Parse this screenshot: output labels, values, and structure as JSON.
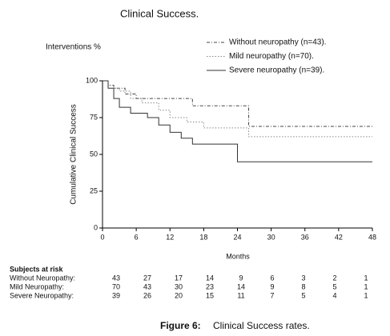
{
  "chart_data": {
    "type": "step",
    "title": "Clinical Success.",
    "subtitle": "Interventions %",
    "ylabel": "Cumulative Clinical Success",
    "xlabel": "Months",
    "xlim": [
      0,
      48
    ],
    "xticks": [
      0,
      6,
      12,
      18,
      24,
      30,
      36,
      42,
      48
    ],
    "ylim": [
      0,
      100
    ],
    "yticks": [
      0,
      25,
      50,
      75,
      100
    ],
    "series": [
      {
        "name": "Without neuropathy (n=43).",
        "color": "#444",
        "line_style": "dashdot",
        "x": [
          0,
          1,
          2,
          4,
          6,
          16,
          26,
          48
        ],
        "values": [
          100,
          97,
          95,
          91,
          88,
          83,
          69,
          69
        ]
      },
      {
        "name": "Mild neuropathy (n=70).",
        "color": "#888",
        "line_style": "dotted",
        "x": [
          0,
          1,
          2,
          3,
          5,
          7,
          10,
          12,
          15,
          18,
          26,
          48
        ],
        "values": [
          100,
          97,
          95,
          93,
          88,
          85,
          80,
          75,
          72,
          68,
          62,
          62
        ]
      },
      {
        "name": "Severe neuropathy (n=39).",
        "color": "#333",
        "line_style": "solid",
        "x": [
          0,
          1,
          2,
          3,
          5,
          8,
          10,
          12,
          14,
          16,
          24,
          48
        ],
        "values": [
          100,
          95,
          88,
          82,
          78,
          75,
          70,
          65,
          61,
          57,
          45,
          45
        ]
      }
    ],
    "risk_table": {
      "title": "Subjects at risk",
      "rows": [
        {
          "label": "Without Neuropathy:",
          "values": [
            43,
            27,
            17,
            14,
            9,
            6,
            3,
            2,
            1
          ]
        },
        {
          "label": "Mild Neuropathy:",
          "values": [
            70,
            43,
            30,
            23,
            14,
            9,
            8,
            5,
            1
          ]
        },
        {
          "label": "Severe Neuropathy:",
          "values": [
            39,
            26,
            20,
            15,
            11,
            7,
            5,
            4,
            1
          ]
        }
      ]
    },
    "caption_label": "Figure 6:",
    "caption": "Clinical Success rates."
  }
}
